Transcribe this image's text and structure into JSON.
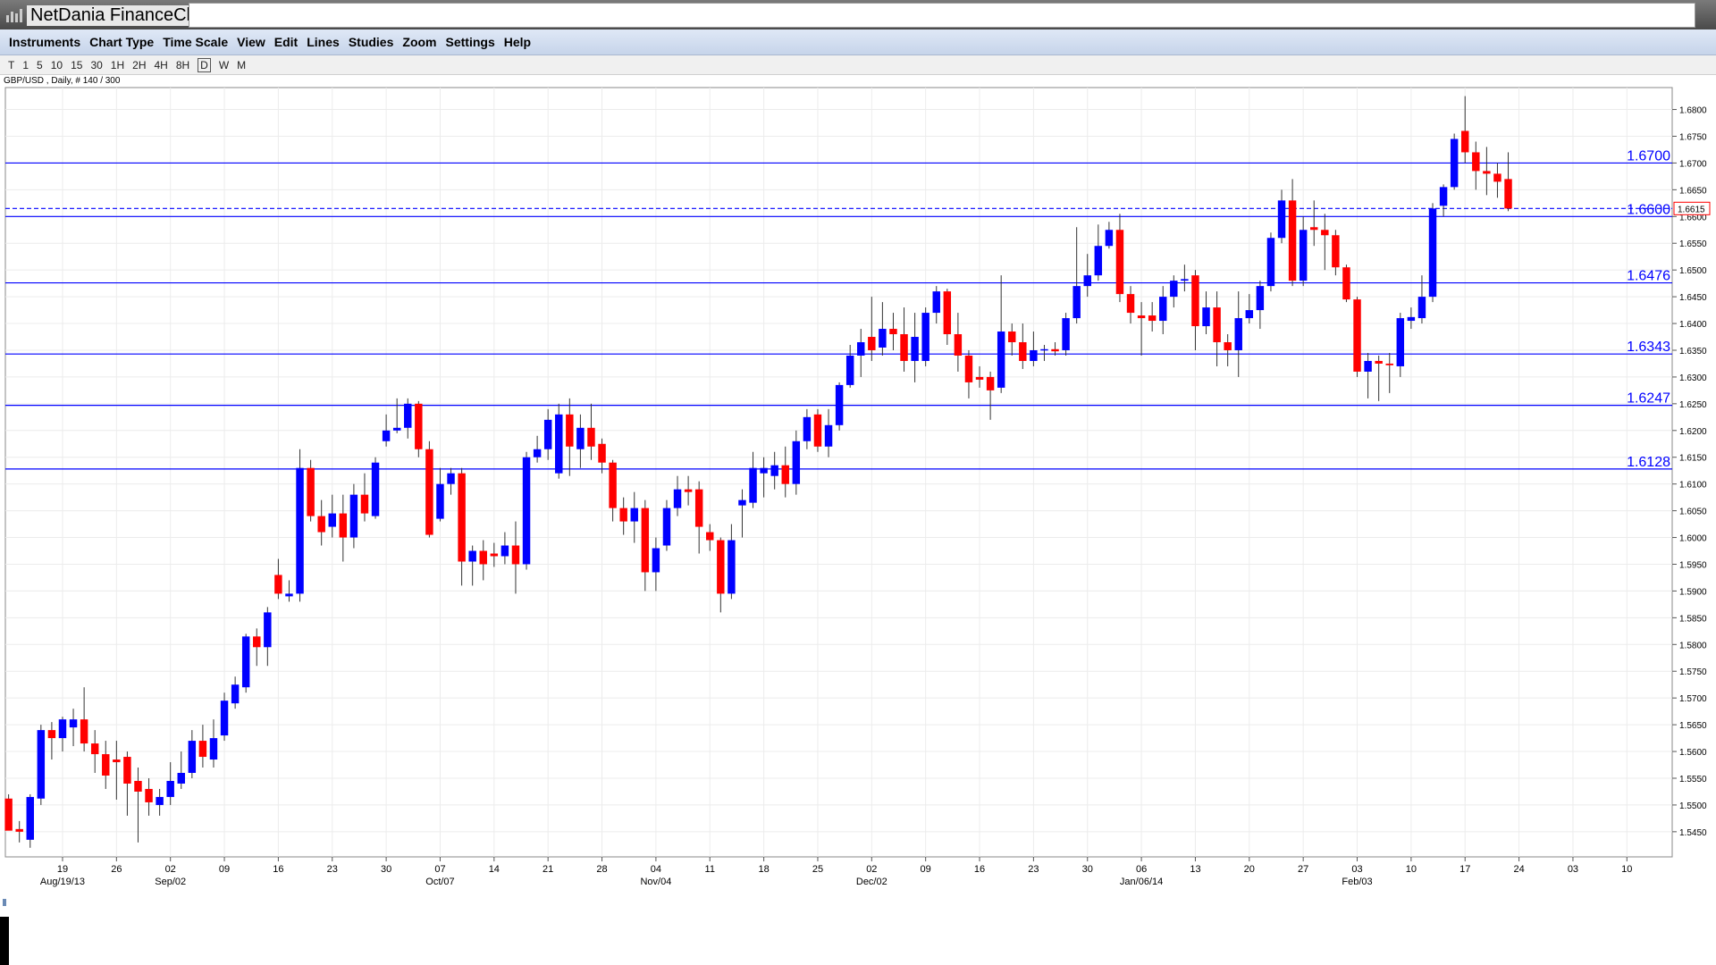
{
  "window": {
    "title": "NetDania FinanceChart"
  },
  "menu": [
    "Instruments",
    "Chart Type",
    "Time Scale",
    "View",
    "Edit",
    "Lines",
    "Studies",
    "Zoom",
    "Settings",
    "Help"
  ],
  "toolbar": [
    "T",
    "1",
    "5",
    "10",
    "15",
    "30",
    "1H",
    "2H",
    "4H",
    "8H",
    "D",
    "W",
    "M"
  ],
  "chart_data": {
    "type": "candlestick",
    "title": "GBP/USD , Daily, # 140 / 300",
    "up_color": "#0000ff",
    "down_color": "#ff0000",
    "level_color": "#0000ff",
    "grid": true,
    "open": [
      1.5512,
      1.5455,
      1.5435,
      1.5512,
      1.564,
      1.5625,
      1.5645,
      1.566,
      1.5615,
      1.5595,
      1.5585,
      1.559,
      1.5545,
      1.553,
      1.55,
      1.5515,
      1.554,
      1.556,
      1.562,
      1.5585,
      1.563,
      1.569,
      1.572,
      1.5815,
      1.5795,
      1.593,
      1.589,
      1.5895,
      1.613,
      1.604,
      1.602,
      1.6045,
      1.6,
      1.608,
      1.604,
      1.618,
      1.62,
      1.6205,
      1.625,
      1.6165,
      1.6035,
      1.61,
      1.612,
      1.5955,
      1.5975,
      1.597,
      1.5965,
      1.5985,
      1.595,
      1.615,
      1.6165,
      1.612,
      1.623,
      1.6165,
      1.6205,
      1.6175,
      1.614,
      1.6055,
      1.603,
      1.6055,
      1.5935,
      1.5985,
      1.6055,
      1.609,
      1.609,
      1.601,
      1.5995,
      1.5895,
      1.606,
      1.6065,
      1.612,
      1.6115,
      1.6135,
      1.61,
      1.618,
      1.623,
      1.617,
      1.621,
      1.6285,
      1.634,
      1.6375,
      1.6355,
      1.639,
      1.638,
      1.633,
      1.633,
      1.642,
      1.646,
      1.638,
      1.634,
      1.63,
      1.63,
      1.628,
      1.6385,
      1.6365,
      1.633,
      1.635,
      1.6352,
      1.635,
      1.641,
      1.647,
      1.649,
      1.6545,
      1.6575,
      1.6455,
      1.6415,
      1.6415,
      1.6405,
      1.645,
      1.648,
      1.649,
      1.6395,
      1.643,
      1.6365,
      1.635,
      1.641,
      1.6425,
      1.647,
      1.656,
      1.663,
      1.648,
      1.658,
      1.6575,
      1.6565,
      1.6505,
      1.6445,
      1.631,
      1.633,
      1.6325,
      1.632,
      1.6405,
      1.641,
      1.645,
      1.662,
      1.6655,
      1.676,
      1.672,
      1.6685,
      1.668,
      1.667
    ],
    "high": [
      1.552,
      1.547,
      1.552,
      1.565,
      1.5655,
      1.5665,
      1.568,
      1.572,
      1.564,
      1.562,
      1.562,
      1.56,
      1.557,
      1.555,
      1.553,
      1.558,
      1.56,
      1.564,
      1.565,
      1.566,
      1.571,
      1.574,
      1.582,
      1.583,
      1.587,
      1.596,
      1.592,
      1.6165,
      1.6145,
      1.607,
      1.608,
      1.608,
      1.61,
      1.612,
      1.615,
      1.623,
      1.626,
      1.626,
      1.6255,
      1.618,
      1.613,
      1.613,
      1.613,
      1.5985,
      1.5995,
      1.599,
      1.601,
      1.603,
      1.616,
      1.619,
      1.624,
      1.625,
      1.626,
      1.623,
      1.625,
      1.6185,
      1.6145,
      1.6075,
      1.6085,
      1.607,
      1.6,
      1.607,
      1.6115,
      1.6115,
      1.6105,
      1.6025,
      1.6,
      1.6025,
      1.609,
      1.616,
      1.615,
      1.616,
      1.617,
      1.62,
      1.624,
      1.624,
      1.624,
      1.629,
      1.636,
      1.639,
      1.645,
      1.644,
      1.642,
      1.643,
      1.642,
      1.643,
      1.647,
      1.6465,
      1.642,
      1.635,
      1.632,
      1.631,
      1.649,
      1.64,
      1.64,
      1.6385,
      1.636,
      1.6365,
      1.642,
      1.658,
      1.653,
      1.6585,
      1.659,
      1.6605,
      1.647,
      1.644,
      1.644,
      1.647,
      1.649,
      1.651,
      1.65,
      1.646,
      1.646,
      1.638,
      1.646,
      1.6455,
      1.648,
      1.657,
      1.665,
      1.667,
      1.66,
      1.663,
      1.6605,
      1.6575,
      1.651,
      1.645,
      1.6345,
      1.634,
      1.6345,
      1.642,
      1.643,
      1.649,
      1.6625,
      1.666,
      1.6755,
      1.6825,
      1.674,
      1.673,
      1.67,
      1.672
    ],
    "low": [
      1.546,
      1.543,
      1.542,
      1.55,
      1.5585,
      1.56,
      1.561,
      1.56,
      1.556,
      1.553,
      1.551,
      1.548,
      1.543,
      1.548,
      1.548,
      1.55,
      1.553,
      1.555,
      1.557,
      1.557,
      1.562,
      1.568,
      1.571,
      1.576,
      1.576,
      1.5885,
      1.588,
      1.588,
      1.603,
      1.5985,
      1.6,
      1.5955,
      1.598,
      1.603,
      1.6035,
      1.617,
      1.6195,
      1.6185,
      1.615,
      1.6,
      1.603,
      1.608,
      1.591,
      1.591,
      1.592,
      1.5945,
      1.595,
      1.5895,
      1.594,
      1.614,
      1.6145,
      1.611,
      1.6115,
      1.613,
      1.6145,
      1.612,
      1.603,
      1.6005,
      1.599,
      1.59,
      1.59,
      1.5975,
      1.604,
      1.606,
      1.597,
      1.5975,
      1.586,
      1.5885,
      1.6,
      1.6055,
      1.6075,
      1.609,
      1.6075,
      1.608,
      1.6165,
      1.616,
      1.615,
      1.62,
      1.628,
      1.63,
      1.633,
      1.634,
      1.635,
      1.631,
      1.629,
      1.632,
      1.64,
      1.636,
      1.631,
      1.626,
      1.628,
      1.622,
      1.627,
      1.634,
      1.6315,
      1.632,
      1.633,
      1.634,
      1.634,
      1.64,
      1.645,
      1.648,
      1.654,
      1.644,
      1.64,
      1.634,
      1.6385,
      1.638,
      1.643,
      1.646,
      1.635,
      1.638,
      1.632,
      1.632,
      1.63,
      1.64,
      1.639,
      1.646,
      1.655,
      1.647,
      1.647,
      1.6545,
      1.65,
      1.649,
      1.644,
      1.63,
      1.626,
      1.6255,
      1.627,
      1.63,
      1.639,
      1.64,
      1.644,
      1.66,
      1.665,
      1.67,
      1.665,
      1.664,
      1.6635,
      1.661
    ],
    "close": [
      1.5452,
      1.545,
      1.5515,
      1.564,
      1.5625,
      1.566,
      1.566,
      1.5615,
      1.5595,
      1.5555,
      1.558,
      1.554,
      1.5525,
      1.5505,
      1.5515,
      1.5545,
      1.556,
      1.562,
      1.559,
      1.5625,
      1.5695,
      1.5725,
      1.5815,
      1.5795,
      1.586,
      1.5895,
      1.5895,
      1.613,
      1.604,
      1.601,
      1.6045,
      1.6,
      1.608,
      1.6045,
      1.614,
      1.62,
      1.6205,
      1.625,
      1.6165,
      1.6005,
      1.61,
      1.612,
      1.5955,
      1.5975,
      1.595,
      1.5965,
      1.5985,
      1.595,
      1.615,
      1.6165,
      1.622,
      1.623,
      1.617,
      1.6205,
      1.617,
      1.614,
      1.6055,
      1.603,
      1.6055,
      1.5935,
      1.598,
      1.6055,
      1.609,
      1.6085,
      1.602,
      1.5995,
      1.5895,
      1.5995,
      1.607,
      1.613,
      1.613,
      1.6135,
      1.61,
      1.618,
      1.6225,
      1.617,
      1.621,
      1.6285,
      1.634,
      1.6365,
      1.635,
      1.639,
      1.638,
      1.633,
      1.6375,
      1.642,
      1.646,
      1.638,
      1.634,
      1.629,
      1.6295,
      1.6275,
      1.6385,
      1.6365,
      1.633,
      1.635,
      1.6352,
      1.6348,
      1.641,
      1.647,
      1.649,
      1.6545,
      1.6575,
      1.6455,
      1.642,
      1.641,
      1.6405,
      1.645,
      1.648,
      1.6483,
      1.6395,
      1.643,
      1.6365,
      1.635,
      1.641,
      1.6425,
      1.647,
      1.656,
      1.663,
      1.648,
      1.6575,
      1.6575,
      1.6565,
      1.6505,
      1.6445,
      1.631,
      1.633,
      1.6325,
      1.6322,
      1.641,
      1.6412,
      1.645,
      1.6615,
      1.6655,
      1.6745,
      1.672,
      1.6685,
      1.668,
      1.6665,
      1.6615
    ],
    "xlim": [
      -0.3,
      154.2
    ],
    "xticks": [
      {
        "value": 5,
        "label": "19"
      },
      {
        "value": 10,
        "label": "26"
      },
      {
        "value": 15,
        "label": "02"
      },
      {
        "value": 20,
        "label": "09"
      },
      {
        "value": 25,
        "label": "16"
      },
      {
        "value": 30,
        "label": "23"
      },
      {
        "value": 35,
        "label": "30"
      },
      {
        "value": 40,
        "label": "07"
      },
      {
        "value": 45,
        "label": "14"
      },
      {
        "value": 50,
        "label": "21"
      },
      {
        "value": 55,
        "label": "28"
      },
      {
        "value": 60,
        "label": "04"
      },
      {
        "value": 65,
        "label": "11"
      },
      {
        "value": 70,
        "label": "18"
      },
      {
        "value": 75,
        "label": "25"
      },
      {
        "value": 80,
        "label": "02"
      },
      {
        "value": 85,
        "label": "09"
      },
      {
        "value": 90,
        "label": "16"
      },
      {
        "value": 95,
        "label": "23"
      },
      {
        "value": 100,
        "label": "30"
      },
      {
        "value": 105,
        "label": "06"
      },
      {
        "value": 110,
        "label": "13"
      },
      {
        "value": 115,
        "label": "20"
      },
      {
        "value": 120,
        "label": "27"
      },
      {
        "value": 125,
        "label": "03"
      },
      {
        "value": 130,
        "label": "10"
      },
      {
        "value": 135,
        "label": "17"
      },
      {
        "value": 140,
        "label": "24"
      },
      {
        "value": 145,
        "label": "03"
      },
      {
        "value": 150,
        "label": "10"
      }
    ],
    "xlabels2": [
      {
        "value": 5,
        "label": "Aug/19/13"
      },
      {
        "value": 15,
        "label": "Sep/02"
      },
      {
        "value": 40,
        "label": "Oct/07"
      },
      {
        "value": 60,
        "label": "Nov/04"
      },
      {
        "value": 80,
        "label": "Dec/02"
      },
      {
        "value": 105,
        "label": "Jan/06/14"
      },
      {
        "value": 125,
        "label": "Feb/03"
      }
    ],
    "ylim": [
      1.5403,
      1.6841
    ],
    "yticks": [
      {
        "value": 1.545,
        "label": "1.5450"
      },
      {
        "value": 1.55,
        "label": "1.5500"
      },
      {
        "value": 1.555,
        "label": "1.5550"
      },
      {
        "value": 1.56,
        "label": "1.5600"
      },
      {
        "value": 1.565,
        "label": "1.5650"
      },
      {
        "value": 1.57,
        "label": "1.5700"
      },
      {
        "value": 1.575,
        "label": "1.5750"
      },
      {
        "value": 1.58,
        "label": "1.5800"
      },
      {
        "value": 1.585,
        "label": "1.5850"
      },
      {
        "value": 1.59,
        "label": "1.5900"
      },
      {
        "value": 1.595,
        "label": "1.5950"
      },
      {
        "value": 1.6,
        "label": "1.6000"
      },
      {
        "value": 1.605,
        "label": "1.6050"
      },
      {
        "value": 1.61,
        "label": "1.6100"
      },
      {
        "value": 1.615,
        "label": "1.6150"
      },
      {
        "value": 1.62,
        "label": "1.6200"
      },
      {
        "value": 1.625,
        "label": "1.6250"
      },
      {
        "value": 1.63,
        "label": "1.6300"
      },
      {
        "value": 1.635,
        "label": "1.6350"
      },
      {
        "value": 1.64,
        "label": "1.6400"
      },
      {
        "value": 1.645,
        "label": "1.6450"
      },
      {
        "value": 1.65,
        "label": "1.6500"
      },
      {
        "value": 1.655,
        "label": "1.6550"
      },
      {
        "value": 1.66,
        "label": "1.6600"
      },
      {
        "value": 1.665,
        "label": "1.6650"
      },
      {
        "value": 1.67,
        "label": "1.6700"
      },
      {
        "value": 1.675,
        "label": "1.6750"
      },
      {
        "value": 1.68,
        "label": "1.6800"
      }
    ],
    "levels": [
      {
        "value": 1.67,
        "label": "1.6700"
      },
      {
        "value": 1.66,
        "label": "1.6600"
      },
      {
        "value": 1.6476,
        "label": "1.6476"
      },
      {
        "value": 1.6343,
        "label": "1.6343"
      },
      {
        "value": 1.6247,
        "label": "1.6247"
      },
      {
        "value": 1.6128,
        "label": "1.6128"
      }
    ],
    "current": {
      "value": 1.6615,
      "label": "1.6615"
    }
  }
}
